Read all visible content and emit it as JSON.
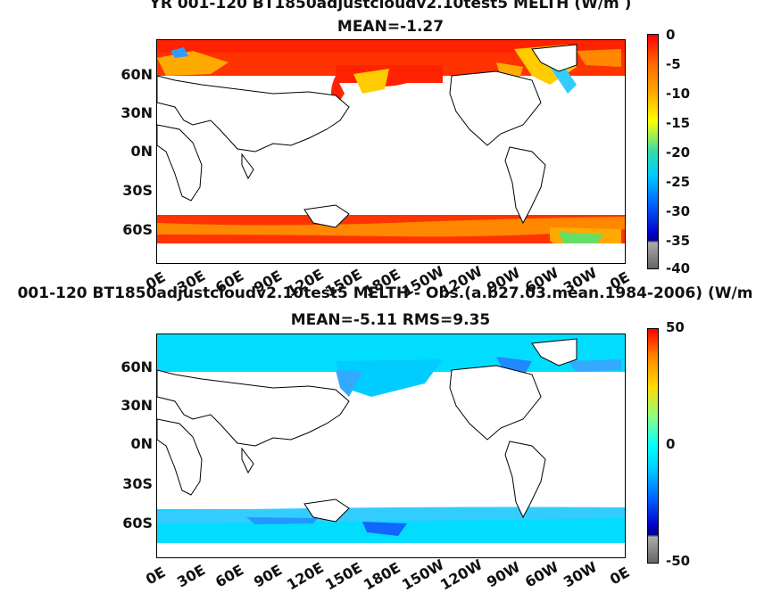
{
  "panel1": {
    "title": "YR 001-120 BT1850_adjustcloud_v2.10_test5  MELTH (W/m²)",
    "title_display": "YR 001-120 BT1850adjustcloudv2.10test5  MELTH (W/m  )",
    "subtitle": "MEAN=-1.27",
    "colorbar_ticks": [
      "0",
      "-5",
      "-10",
      "-15",
      "-20",
      "-25",
      "-30",
      "-35",
      "-40"
    ]
  },
  "panel2": {
    "title": "001-120 BT1850_adjustcloud_v2.10_test5 MELTH - Obs.(a.b27.03.mean.1984-2006) (W/m",
    "title_display": "001-120 BT1850adjustcloudv2.10test5 MELTH - Obs.(a.b27.03.mean.1984-2006) (W/m",
    "subtitle": "MEAN=-5.11 RMS=9.35",
    "colorbar_ticks": [
      "50",
      "0",
      "-50"
    ]
  },
  "axes": {
    "lat_labels": [
      "60N",
      "30N",
      "0N",
      "30S",
      "60S"
    ],
    "lon_labels": [
      "0E",
      "30E",
      "60E",
      "90E",
      "120E",
      "150E",
      "180E",
      "150W",
      "120W",
      "90W",
      "60W",
      "30W",
      "0E"
    ]
  },
  "colors": {
    "panel1_high": "#ff2200",
    "panel1_mid": "#ff9900",
    "panel1_low": "#33ccff",
    "panel2_ocean": "#00ddff",
    "panel2_deep": "#4499ff",
    "land": "#ffffff"
  }
}
